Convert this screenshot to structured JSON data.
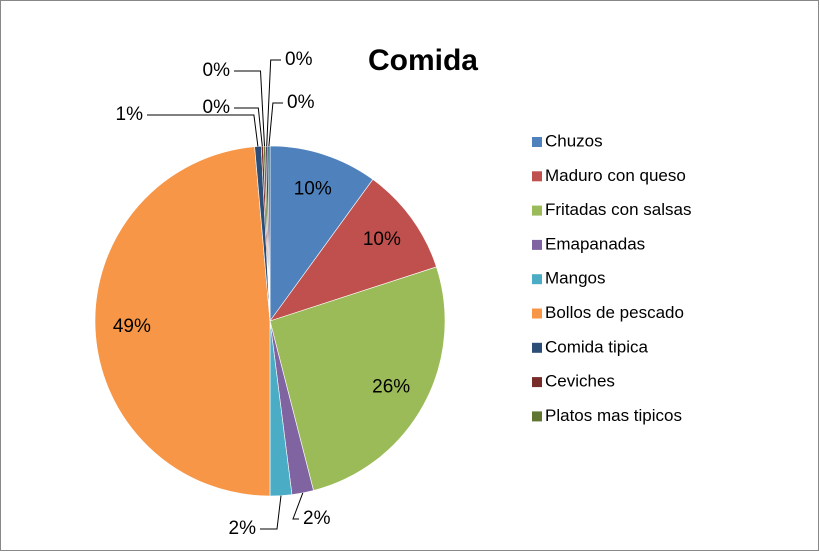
{
  "chart_data": {
    "type": "pie",
    "title": "Comida",
    "categories": [
      "Chuzos",
      "Maduro con queso",
      "Fritadas con salsas",
      "Emapanadas",
      "Mangos",
      "Bollos de pescado",
      "Comida tipica",
      "Ceviches",
      "Platos mas tipicos",
      null,
      null
    ],
    "values": [
      10,
      10,
      26,
      2,
      2,
      48.6,
      0.6,
      0.2,
      0.2,
      0.2,
      0.2
    ],
    "value_labels": [
      "10%",
      "10%",
      "26%",
      "2%",
      "2%",
      "49%",
      "1%",
      "0%",
      "0%",
      "0%",
      "0%"
    ],
    "colors": [
      "#4F81BD",
      "#C0504D",
      "#9BBB59",
      "#8064A2",
      "#4BACC6",
      "#F79646",
      "#2C4D75",
      "#772C2A",
      "#5F7530",
      "#4D3B62",
      "#276A7C"
    ],
    "legend": "right"
  }
}
